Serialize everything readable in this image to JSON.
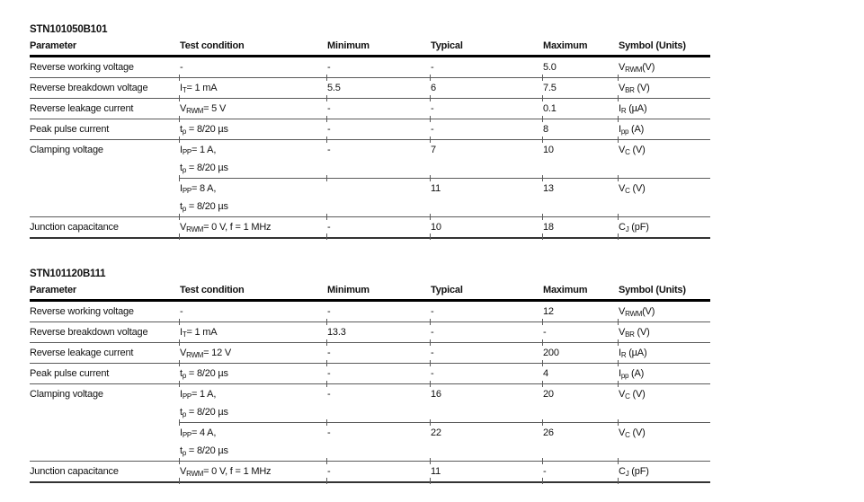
{
  "theme": {
    "text": "#111111",
    "rule_thin": "#5a5a5a",
    "rule_thick": "#000000",
    "background": "#ffffff"
  },
  "tables": [
    {
      "title": "STN101050B101",
      "headers": [
        "Parameter",
        "Test condition",
        "Minimum",
        "Typical",
        "Maximum",
        "Symbol (Units)"
      ],
      "rows": [
        {
          "parameter": "Reverse working voltage",
          "condition": "-",
          "minimum": "-",
          "typical": "-",
          "maximum": "5.0",
          "symbol": "V~RWM~(V)"
        },
        {
          "parameter": "Reverse breakdown voltage",
          "condition": "I~T~= 1 mA",
          "minimum": "5.5",
          "typical": "6",
          "maximum": "7.5",
          "symbol": "V~BR~ (V)"
        },
        {
          "parameter": "Reverse leakage current",
          "condition": "V~RWM~= 5 V",
          "minimum": "-",
          "typical": "-",
          "maximum": "0.1",
          "symbol": "I~R~ (µA)"
        },
        {
          "parameter": "Peak pulse current",
          "condition": "t~p~ = 8/20 µs",
          "minimum": "-",
          "typical": "-",
          "maximum": "8",
          "symbol": "I~pp~ (A)"
        },
        {
          "parameter": "Clamping voltage",
          "condition": "I~PP~= 1 A,",
          "condition2": "t~p~ = 8/20 µs",
          "minimum": "-",
          "typical": "7",
          "maximum": "10",
          "symbol": "V~C~ (V)"
        },
        {
          "parameter": "",
          "condition": "I~PP~= 8 A,",
          "condition2": "t~p~ = 8/20 µs",
          "minimum": "",
          "typical": "11",
          "maximum": "13",
          "symbol": "V~C~ (V)"
        },
        {
          "parameter": "Junction capacitance",
          "condition": "V~RWM~= 0 V, f = 1 MHz",
          "minimum": "-",
          "typical": "10",
          "maximum": "18",
          "symbol": "C~J~ (pF)"
        }
      ]
    },
    {
      "title": "STN101120B111",
      "headers": [
        "Parameter",
        "Test condition",
        "Minimum",
        "Typical",
        "Maximum",
        "Symbol (Units)"
      ],
      "rows": [
        {
          "parameter": "Reverse working voltage",
          "condition": "-",
          "minimum": "-",
          "typical": "-",
          "maximum": "12",
          "symbol": "V~RWM~(V)"
        },
        {
          "parameter": "Reverse breakdown voltage",
          "condition": "I~T~= 1 mA",
          "minimum": "13.3",
          "typical": "-",
          "maximum": "-",
          "symbol": "V~BR~ (V)"
        },
        {
          "parameter": "Reverse leakage current",
          "condition": "V~RWM~= 12 V",
          "minimum": "-",
          "typical": "-",
          "maximum": "200",
          "symbol": "I~R~ (µA)"
        },
        {
          "parameter": "Peak pulse current",
          "condition": "t~p~ = 8/20 µs",
          "minimum": "-",
          "typical": "-",
          "maximum": "4",
          "symbol": "I~pp~ (A)"
        },
        {
          "parameter": "Clamping voltage",
          "condition": "I~PP~= 1 A,",
          "condition2": "t~p~ = 8/20 µs",
          "minimum": "-",
          "typical": "16",
          "maximum": "20",
          "symbol": "V~C~ (V)"
        },
        {
          "parameter": "",
          "condition": "I~PP~= 4 A,",
          "condition2": "t~p~ = 8/20 µs",
          "minimum": "-",
          "typical": "22",
          "maximum": "26",
          "symbol": "V~C~ (V)"
        },
        {
          "parameter": "Junction capacitance",
          "condition": "V~RWM~= 0 V, f = 1 MHz",
          "minimum": "-",
          "typical": "11",
          "maximum": "-",
          "symbol": "C~J~ (pF)"
        }
      ]
    }
  ]
}
